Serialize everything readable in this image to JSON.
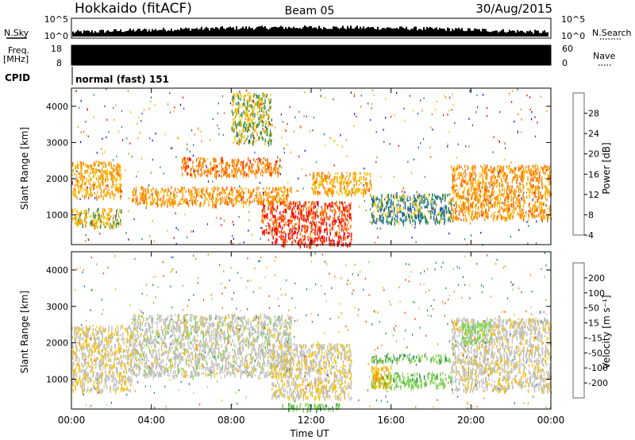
{
  "header": {
    "station": "Hokkaido (fitACF)",
    "beam": "Beam 05",
    "date": "30/Aug/2015"
  },
  "noise_panel": {
    "left_label": "N.Sky",
    "right_label": "N.Search",
    "left_ticks": [
      "10^5",
      "10^0"
    ],
    "right_ticks": [
      "10^5",
      "10^0"
    ]
  },
  "freq_panel": {
    "left_label_line1": "Freq.",
    "left_label_line2": "[MHz]",
    "left_ticks": [
      "18",
      "8"
    ],
    "right_label": "Nave",
    "right_ticks": [
      "60",
      "0"
    ]
  },
  "cpid_panel": {
    "label": "CPID",
    "mode_text": "normal (fast) 151"
  },
  "power_panel": {
    "ylabel": "Slant Range [km]",
    "yticks": [
      "4000",
      "3000",
      "2000",
      "1000"
    ],
    "colorbar_label": "Power [dB]",
    "colorbar_ticks": [
      "28",
      "24",
      "20",
      "16",
      "12",
      "8",
      "4"
    ],
    "colorbar_colors": [
      "#ff0000",
      "#ff6a00",
      "#ff9900",
      "#f5c400",
      "#2e8b57",
      "#1f5fa8",
      "#0000ff"
    ]
  },
  "velocity_panel": {
    "ylabel": "Slant Range [km]",
    "yticks": [
      "4000",
      "3000",
      "2000",
      "1000"
    ],
    "colorbar_label": "Velocity [m s⁻¹]",
    "colorbar_ticks": [
      "200",
      "100",
      "50",
      "15",
      "-15",
      "-50",
      "-100",
      "-200"
    ],
    "colorbar_colors": [
      "#1a1aa8",
      "#2e6db0",
      "#2e8b57",
      "#7ad14b",
      "#bfbfbf",
      "#f5c000",
      "#ff8800",
      "#ff4400",
      "#ff0000"
    ]
  },
  "xaxis": {
    "label": "Time UT",
    "ticks": [
      "00:00",
      "04:00",
      "08:00",
      "12:00",
      "16:00",
      "20:00",
      "00:00"
    ]
  },
  "chart_data": [
    {
      "type": "heatmap",
      "title": "Power",
      "xlabel": "Time UT",
      "ylabel": "Slant Range [km]",
      "xlim": [
        0,
        24
      ],
      "ylim": [
        180,
        4500
      ],
      "zlim": [
        0,
        30
      ],
      "colorbar_label": "Power [dB]",
      "regions": [
        {
          "t": [
            0.0,
            2.5
          ],
          "r": [
            1500,
            2500
          ],
          "value": 18
        },
        {
          "t": [
            0.0,
            2.5
          ],
          "r": [
            700,
            1200
          ],
          "value": 16
        },
        {
          "t": [
            3.0,
            11.0
          ],
          "r": [
            1300,
            1800
          ],
          "value": 20
        },
        {
          "t": [
            5.5,
            10.5
          ],
          "r": [
            2100,
            2600
          ],
          "value": 22
        },
        {
          "t": [
            9.5,
            14.0
          ],
          "r": [
            500,
            1400
          ],
          "value": 26
        },
        {
          "t": [
            12.0,
            15.0
          ],
          "r": [
            1600,
            2200
          ],
          "value": 18
        },
        {
          "t": [
            15.0,
            19.0
          ],
          "r": [
            800,
            1600
          ],
          "value": 10
        },
        {
          "t": [
            19.0,
            24.0
          ],
          "r": [
            900,
            2400
          ],
          "value": 20
        },
        {
          "t": [
            8.0,
            10.0
          ],
          "r": [
            3000,
            4400
          ],
          "value": 14
        },
        {
          "t": [
            10.0,
            14.0
          ],
          "r": [
            180,
            450
          ],
          "value": 28
        }
      ]
    },
    {
      "type": "heatmap",
      "title": "Velocity",
      "xlabel": "Time UT",
      "ylabel": "Slant Range [km]",
      "xlim": [
        0,
        24
      ],
      "ylim": [
        180,
        4500
      ],
      "zlim": [
        -200,
        200
      ],
      "colorbar_label": "Velocity [m s⁻¹]",
      "regions": [
        {
          "t": [
            0.0,
            3.0
          ],
          "r": [
            700,
            2500
          ],
          "value": -10
        },
        {
          "t": [
            3.0,
            11.0
          ],
          "r": [
            1100,
            2800
          ],
          "value": 0
        },
        {
          "t": [
            10.0,
            14.0
          ],
          "r": [
            500,
            2000
          ],
          "value": -10
        },
        {
          "t": [
            15.0,
            19.0
          ],
          "r": [
            1500,
            1700
          ],
          "value": 40
        },
        {
          "t": [
            15.0,
            19.0
          ],
          "r": [
            800,
            1200
          ],
          "value": 35
        },
        {
          "t": [
            15.0,
            16.0
          ],
          "r": [
            800,
            1400
          ],
          "value": -40
        },
        {
          "t": [
            19.0,
            24.0
          ],
          "r": [
            700,
            2700
          ],
          "value": -5
        },
        {
          "t": [
            19.5,
            21.0
          ],
          "r": [
            2000,
            2600
          ],
          "value": 30
        },
        {
          "t": [
            10.5,
            13.5
          ],
          "r": [
            180,
            350
          ],
          "value": 45
        }
      ]
    }
  ]
}
